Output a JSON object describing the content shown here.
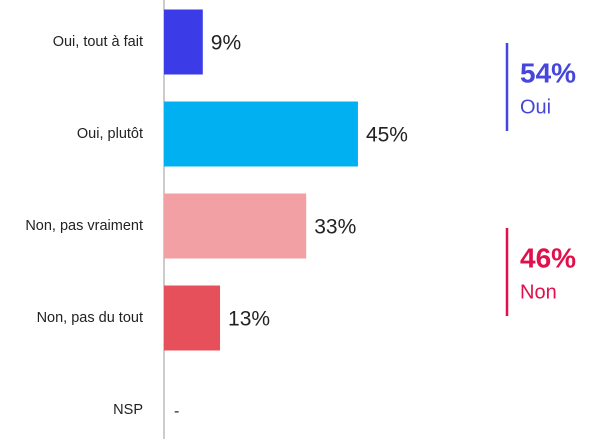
{
  "chart_data": {
    "type": "bar",
    "orientation": "horizontal",
    "categories": [
      "Oui, tout à fait",
      "Oui, plutôt",
      "Non, pas vraiment",
      "Non, pas du tout",
      "NSP"
    ],
    "values": [
      9,
      45,
      33,
      13,
      null
    ],
    "value_labels": [
      "9%",
      "45%",
      "33%",
      "13%",
      "-"
    ],
    "colors": [
      "#3b3be8",
      "#00b0f0",
      "#f2a0a4",
      "#e6505a",
      "#999999"
    ],
    "summary": [
      {
        "name": "Oui",
        "value": 54,
        "value_label": "54%",
        "color": "#4646dc"
      },
      {
        "name": "Non",
        "value": 46,
        "value_label": "46%",
        "color": "#e0104c"
      }
    ]
  }
}
